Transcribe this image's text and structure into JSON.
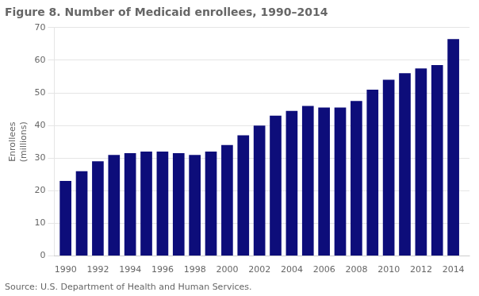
{
  "chart_data": {
    "type": "bar",
    "title": "Figure 8. Number of Medicaid enrollees, 1990–2014",
    "ylabel": [
      "Enrollees",
      "(millions)"
    ],
    "annotations": [
      "Source: U.S. Department of Health and Human Services."
    ],
    "x": [
      1990,
      1991,
      1992,
      1993,
      1994,
      1995,
      1996,
      1997,
      1998,
      1999,
      2000,
      2001,
      2002,
      2003,
      2004,
      2005,
      2006,
      2007,
      2008,
      2009,
      2010,
      2011,
      2012,
      2013,
      2014
    ],
    "values": [
      23,
      26,
      29,
      31,
      31.5,
      32,
      32,
      31.5,
      31,
      32,
      34,
      37,
      40,
      43,
      44.5,
      46,
      45.5,
      45.5,
      47.5,
      51,
      54,
      56,
      57.5,
      58.5,
      66.5
    ],
    "color": "#0d0d7a",
    "xlim": [
      1989.3,
      2015.0
    ],
    "xticks": [
      1990,
      1992,
      1994,
      1996,
      1998,
      2000,
      2002,
      2004,
      2006,
      2008,
      2010,
      2012,
      2014
    ],
    "ylim": [
      0,
      70
    ],
    "yticks": [
      0,
      10,
      20,
      30,
      40,
      50,
      60,
      70
    ],
    "grid": true
  }
}
